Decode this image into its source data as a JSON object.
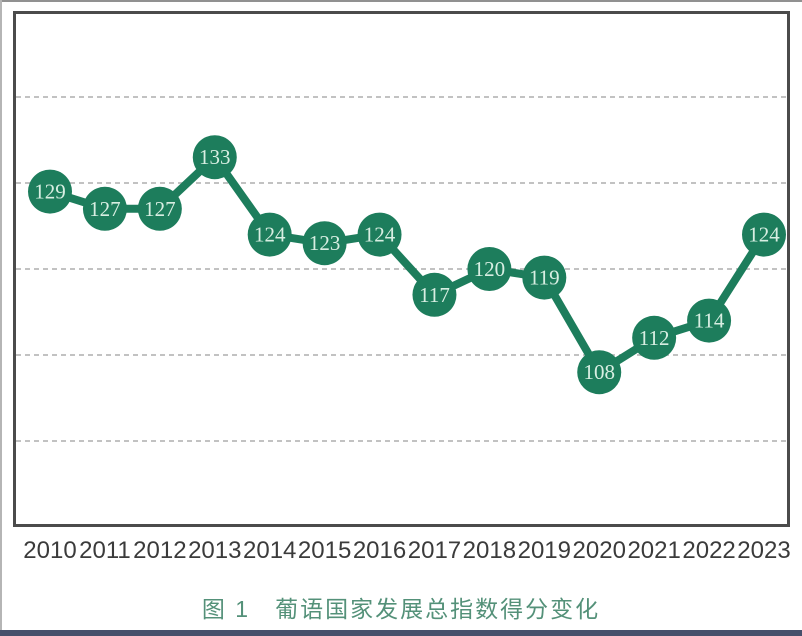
{
  "page": {
    "caption": "图 1　葡语国家发展总指数得分变化"
  },
  "chart_data": {
    "type": "line",
    "title": "图 1 葡语国家发展总指数得分变化",
    "x": [
      "2010",
      "2011",
      "2012",
      "2013",
      "2014",
      "2015",
      "2016",
      "2017",
      "2018",
      "2019",
      "2020",
      "2021",
      "2022",
      "2023"
    ],
    "values": [
      129,
      127,
      127,
      133,
      124,
      123,
      124,
      117,
      120,
      119,
      108,
      112,
      114,
      124
    ],
    "point_labels": [
      129,
      127,
      127,
      133,
      124,
      123,
      124,
      117,
      120,
      119,
      108,
      112,
      114,
      124
    ],
    "xlabel": "",
    "ylabel": "",
    "ylim": [
      90,
      150
    ],
    "gridline_values": [
      100,
      110,
      120,
      130,
      140
    ],
    "grid": "horizontal dashed, no y tick labels",
    "legend_position": "none",
    "colors": {
      "line": "#1d7d5c",
      "marker": "#1d7d5c",
      "marker_label": "#d8eee2",
      "axis_label": "#3b3b3b",
      "gridline": "#c2c2c2",
      "plot_border": "#4b4b4b",
      "caption": "#549179",
      "page_bottom_edge": "#46506b"
    }
  }
}
